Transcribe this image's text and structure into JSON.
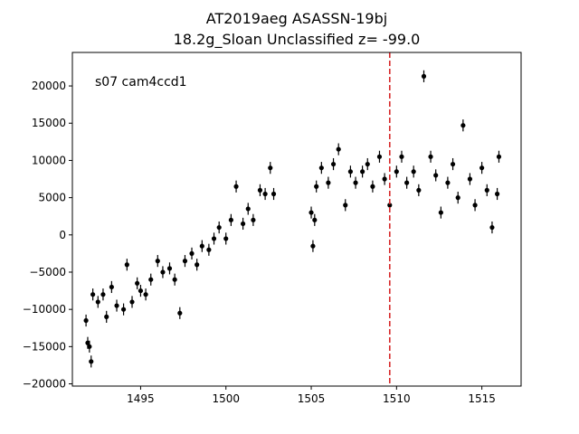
{
  "chart_data": {
    "type": "scatter",
    "title_line1": "AT2019aeg  ASASSN-19bj",
    "title_line2": "18.2g_Sloan Unclassified z= -99.0",
    "annotation": "s07 cam4ccd1",
    "xlabel": "",
    "ylabel": "",
    "xlim": [
      1491.0,
      1517.3
    ],
    "ylim": [
      -20300,
      24500
    ],
    "x_ticks": [
      1495,
      1500,
      1505,
      1510,
      1515
    ],
    "x_tick_labels": [
      "1495",
      "1500",
      "1505",
      "1510",
      "1515"
    ],
    "y_ticks": [
      -20000,
      -15000,
      -10000,
      -5000,
      0,
      5000,
      10000,
      15000,
      20000
    ],
    "y_tick_labels": [
      "−20000",
      "−15000",
      "−10000",
      "−5000",
      "0",
      "5000",
      "10000",
      "15000",
      "20000"
    ],
    "vline": {
      "x": 1509.6,
      "color": "#d62728",
      "style": "dashed"
    },
    "grid": false,
    "marker_color": "#000000",
    "series": [
      {
        "points": [
          [
            1491.8,
            -11500
          ],
          [
            1491.9,
            -14500
          ],
          [
            1492.0,
            -15000
          ],
          [
            1492.1,
            -17000
          ],
          [
            1492.2,
            -8000
          ],
          [
            1492.5,
            -9000
          ],
          [
            1492.8,
            -8000
          ],
          [
            1493.0,
            -11000
          ],
          [
            1493.3,
            -7000
          ],
          [
            1493.6,
            -9500
          ],
          [
            1494.0,
            -10000
          ],
          [
            1494.2,
            -4000
          ],
          [
            1494.5,
            -9000
          ],
          [
            1494.8,
            -6500
          ],
          [
            1495.0,
            -7500
          ],
          [
            1495.3,
            -8000
          ],
          [
            1495.6,
            -6000
          ],
          [
            1496.0,
            -3500
          ],
          [
            1496.3,
            -5000
          ],
          [
            1496.7,
            -4500
          ],
          [
            1497.0,
            -6000
          ],
          [
            1497.3,
            -10500
          ],
          [
            1497.6,
            -3500
          ],
          [
            1498.0,
            -2500
          ],
          [
            1498.3,
            -4000
          ],
          [
            1498.6,
            -1500
          ],
          [
            1499.0,
            -2000
          ],
          [
            1499.3,
            -500
          ],
          [
            1499.6,
            1000
          ],
          [
            1500.0,
            -500
          ],
          [
            1500.3,
            2000
          ],
          [
            1500.6,
            6500
          ],
          [
            1501.0,
            1500
          ],
          [
            1501.3,
            3500
          ],
          [
            1501.6,
            2000
          ],
          [
            1502.0,
            6000
          ],
          [
            1502.3,
            5500
          ],
          [
            1502.6,
            9000
          ],
          [
            1502.8,
            5500
          ],
          [
            1505.0,
            3000
          ],
          [
            1505.1,
            -1500
          ],
          [
            1505.2,
            2000
          ],
          [
            1505.3,
            6500
          ],
          [
            1505.6,
            9000
          ],
          [
            1506.0,
            7000
          ],
          [
            1506.3,
            9500
          ],
          [
            1506.6,
            11500
          ],
          [
            1507.0,
            4000
          ],
          [
            1507.3,
            8500
          ],
          [
            1507.6,
            7000
          ],
          [
            1508.0,
            8500
          ],
          [
            1508.3,
            9500
          ],
          [
            1508.6,
            6500
          ],
          [
            1509.0,
            10500
          ],
          [
            1509.3,
            7500
          ],
          [
            1509.6,
            4000
          ],
          [
            1510.0,
            8500
          ],
          [
            1510.3,
            10500
          ],
          [
            1510.6,
            7000
          ],
          [
            1511.0,
            8500
          ],
          [
            1511.3,
            6000
          ],
          [
            1511.6,
            21300
          ],
          [
            1512.0,
            10500
          ],
          [
            1512.3,
            8000
          ],
          [
            1512.6,
            3000
          ],
          [
            1513.0,
            7000
          ],
          [
            1513.3,
            9500
          ],
          [
            1513.6,
            5000
          ],
          [
            1513.9,
            14700
          ],
          [
            1514.3,
            7500
          ],
          [
            1514.6,
            4000
          ],
          [
            1515.0,
            9000
          ],
          [
            1515.3,
            6000
          ],
          [
            1515.6,
            1000
          ],
          [
            1515.9,
            5500
          ],
          [
            1516.0,
            10500
          ]
        ],
        "yerr": 800
      }
    ]
  }
}
